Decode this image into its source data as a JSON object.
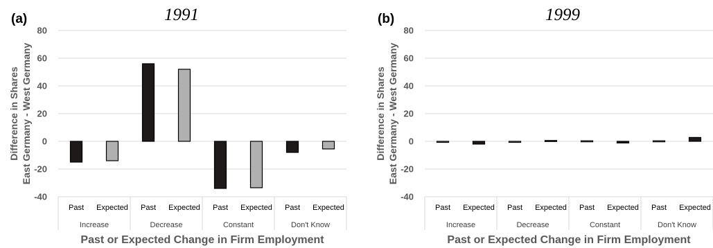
{
  "chart_data": [
    {
      "type": "bar",
      "panel_label": "(a)",
      "title": "1991",
      "ylabel_line1": "Difference in Shares",
      "ylabel_line2": "East Germany - West Germany",
      "xlabel": "Past or Expected Change in Firm Employment",
      "ylim": [
        -40,
        80
      ],
      "yticks": [
        80,
        60,
        40,
        20,
        0,
        -20,
        -40
      ],
      "grid": true,
      "groups": [
        "Increase",
        "Decrease",
        "Constant",
        "Don't Know"
      ],
      "subcategories": [
        "Past",
        "Expected"
      ],
      "series": [
        {
          "name": "Past",
          "color": "#1f1a1a",
          "values": [
            -15,
            56,
            -34,
            -8
          ]
        },
        {
          "name": "Expected",
          "color": "#b0b0b0",
          "values": [
            -14,
            52,
            -33.5,
            -5.5
          ]
        }
      ]
    },
    {
      "type": "bar",
      "panel_label": "(b)",
      "title": "1999",
      "ylabel_line1": "Difference in Shares",
      "ylabel_line2": "East Germany - West Germany",
      "xlabel": "Past or Expected Change in Firm Employment",
      "ylim": [
        -40,
        80
      ],
      "yticks": [
        80,
        60,
        40,
        20,
        0,
        -20,
        -40
      ],
      "grid": true,
      "groups": [
        "Increase",
        "Decrease",
        "Constant",
        "Don't Know"
      ],
      "subcategories": [
        "Past",
        "Expected"
      ],
      "series": [
        {
          "name": "Past",
          "color": "#b0b0b0",
          "values": [
            -0.5,
            -0.5,
            0.4,
            0.4
          ]
        },
        {
          "name": "Expected",
          "color": "#1f1a1a",
          "values": [
            -2,
            0.6,
            -1.2,
            2.8
          ]
        }
      ]
    }
  ]
}
